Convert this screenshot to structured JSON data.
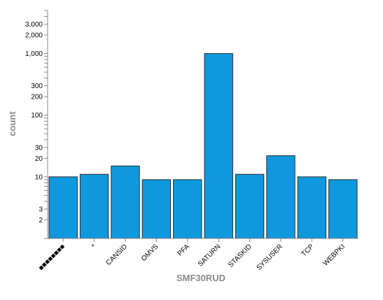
{
  "chart_data": {
    "type": "bar",
    "xlabel": "SMF30RUD",
    "ylabel": "count",
    "yscale": "log",
    "ylim": [
      1,
      5000
    ],
    "grid": false,
    "categories": [
      "■■■■■■■■",
      "*",
      "CANSID",
      "OMVS",
      "PFA",
      "SATURN",
      "STASKID",
      "SYSUSER",
      "TCP",
      "WEBPKI"
    ],
    "values": [
      10,
      11,
      15,
      9,
      9,
      1000,
      11,
      22,
      10,
      9
    ],
    "y_tick_labels": [
      "2",
      "3",
      "10",
      "20",
      "30",
      "100",
      "200",
      "300",
      "1,000",
      "2,000",
      "3,000"
    ],
    "colors": {
      "bar": "#0f98dd",
      "axis_title": "#8a8a8a"
    }
  }
}
